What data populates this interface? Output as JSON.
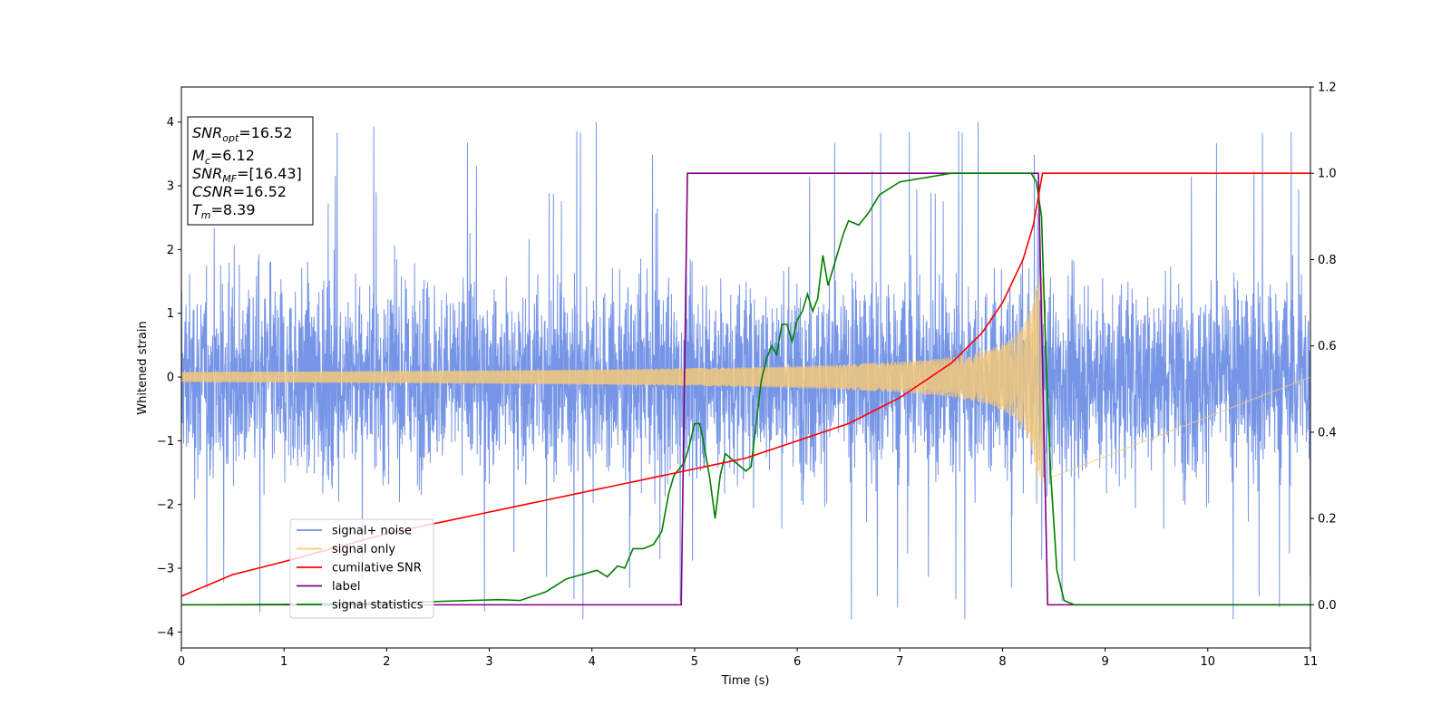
{
  "chart_data": {
    "type": "line",
    "xlabel": "Time (s)",
    "ylabel": "Whitened strain",
    "xlim": [
      0,
      11
    ],
    "ylim_left": [
      -4.25,
      4.55
    ],
    "ylim_right": [
      -0.1,
      1.2
    ],
    "x_ticks": [
      0,
      1,
      2,
      3,
      4,
      5,
      6,
      7,
      8,
      9,
      10,
      11
    ],
    "y_ticks_left": [
      -4,
      -3,
      -2,
      -1,
      0,
      1,
      2,
      3,
      4
    ],
    "y_ticks_right": [
      "0.0",
      "0.2",
      "0.4",
      "0.6",
      "0.8",
      "1.0",
      "1.2"
    ],
    "grid": false,
    "legend_position": "lower-left",
    "series": [
      {
        "name": "signal+ noise",
        "color": "#6f8fe6",
        "axis": "left",
        "description": "noisy whitened strain, roughly |y| <= 2.3 with spikes to about 4.2",
        "min": -3.8,
        "max": 4.18
      },
      {
        "name": "signal only",
        "color": "#f5c97a",
        "axis": "left",
        "chirp": {
          "start": 0,
          "merger": 8.39,
          "start_amplitude": 0.08,
          "peak_amplitude": 1.65,
          "after_merger": 0
        }
      },
      {
        "name": "cumilative SNR",
        "color": "#ff0000",
        "axis": "right",
        "x": [
          0,
          0.5,
          1,
          2,
          3,
          4,
          5,
          5.5,
          6,
          6.5,
          7,
          7.5,
          7.8,
          8.0,
          8.2,
          8.3,
          8.39,
          11
        ],
        "y": [
          0.02,
          0.07,
          0.1,
          0.165,
          0.215,
          0.265,
          0.315,
          0.34,
          0.38,
          0.42,
          0.48,
          0.56,
          0.63,
          0.7,
          0.8,
          0.88,
          1.0,
          1.0
        ]
      },
      {
        "name": "label",
        "color": "#800080",
        "axis": "right",
        "x": [
          0,
          4.87,
          4.93,
          8.35,
          8.44,
          11
        ],
        "y": [
          0,
          0,
          1,
          1,
          0,
          0
        ]
      },
      {
        "name": "signal statistics",
        "color": "#008000",
        "axis": "right",
        "x": [
          0,
          1,
          2,
          2.8,
          3.1,
          3.3,
          3.55,
          3.75,
          3.9,
          4.05,
          4.15,
          4.25,
          4.32,
          4.4,
          4.5,
          4.6,
          4.68,
          4.75,
          4.8,
          4.9,
          4.95,
          5.0,
          5.05,
          5.1,
          5.15,
          5.2,
          5.25,
          5.3,
          5.4,
          5.5,
          5.55,
          5.58,
          5.65,
          5.7,
          5.75,
          5.8,
          5.85,
          5.9,
          5.95,
          6.0,
          6.05,
          6.1,
          6.15,
          6.2,
          6.25,
          6.3,
          6.35,
          6.4,
          6.45,
          6.5,
          6.6,
          6.7,
          6.8,
          7.0,
          7.5,
          7.9,
          8.1,
          8.22,
          8.28,
          8.33,
          8.38,
          8.42,
          8.47,
          8.53,
          8.6,
          8.7,
          11
        ],
        "y": [
          0.0,
          0.001,
          0.004,
          0.01,
          0.012,
          0.01,
          0.03,
          0.06,
          0.07,
          0.08,
          0.065,
          0.09,
          0.085,
          0.13,
          0.13,
          0.14,
          0.17,
          0.26,
          0.3,
          0.33,
          0.37,
          0.42,
          0.42,
          0.36,
          0.29,
          0.2,
          0.3,
          0.35,
          0.33,
          0.31,
          0.32,
          0.38,
          0.52,
          0.57,
          0.6,
          0.58,
          0.65,
          0.65,
          0.61,
          0.66,
          0.68,
          0.72,
          0.68,
          0.71,
          0.81,
          0.74,
          0.78,
          0.82,
          0.86,
          0.89,
          0.88,
          0.91,
          0.95,
          0.98,
          1.0,
          1.0,
          1.0,
          1.0,
          1.0,
          0.98,
          0.9,
          0.6,
          0.3,
          0.08,
          0.01,
          0.0,
          0.0
        ]
      }
    ],
    "info_box": {
      "lines": [
        {
          "sym": "SNR",
          "sub": "opt",
          "val": "=16.52"
        },
        {
          "sym": "M",
          "sub": "c",
          "val": "=6.12"
        },
        {
          "sym": "SNR",
          "sub": "MF",
          "val": "=[16.43]"
        },
        {
          "sym": "CSNR",
          "sub": "",
          "val": "=16.52"
        },
        {
          "sym": "T",
          "sub": "m",
          "val": "=8.39"
        }
      ]
    }
  }
}
